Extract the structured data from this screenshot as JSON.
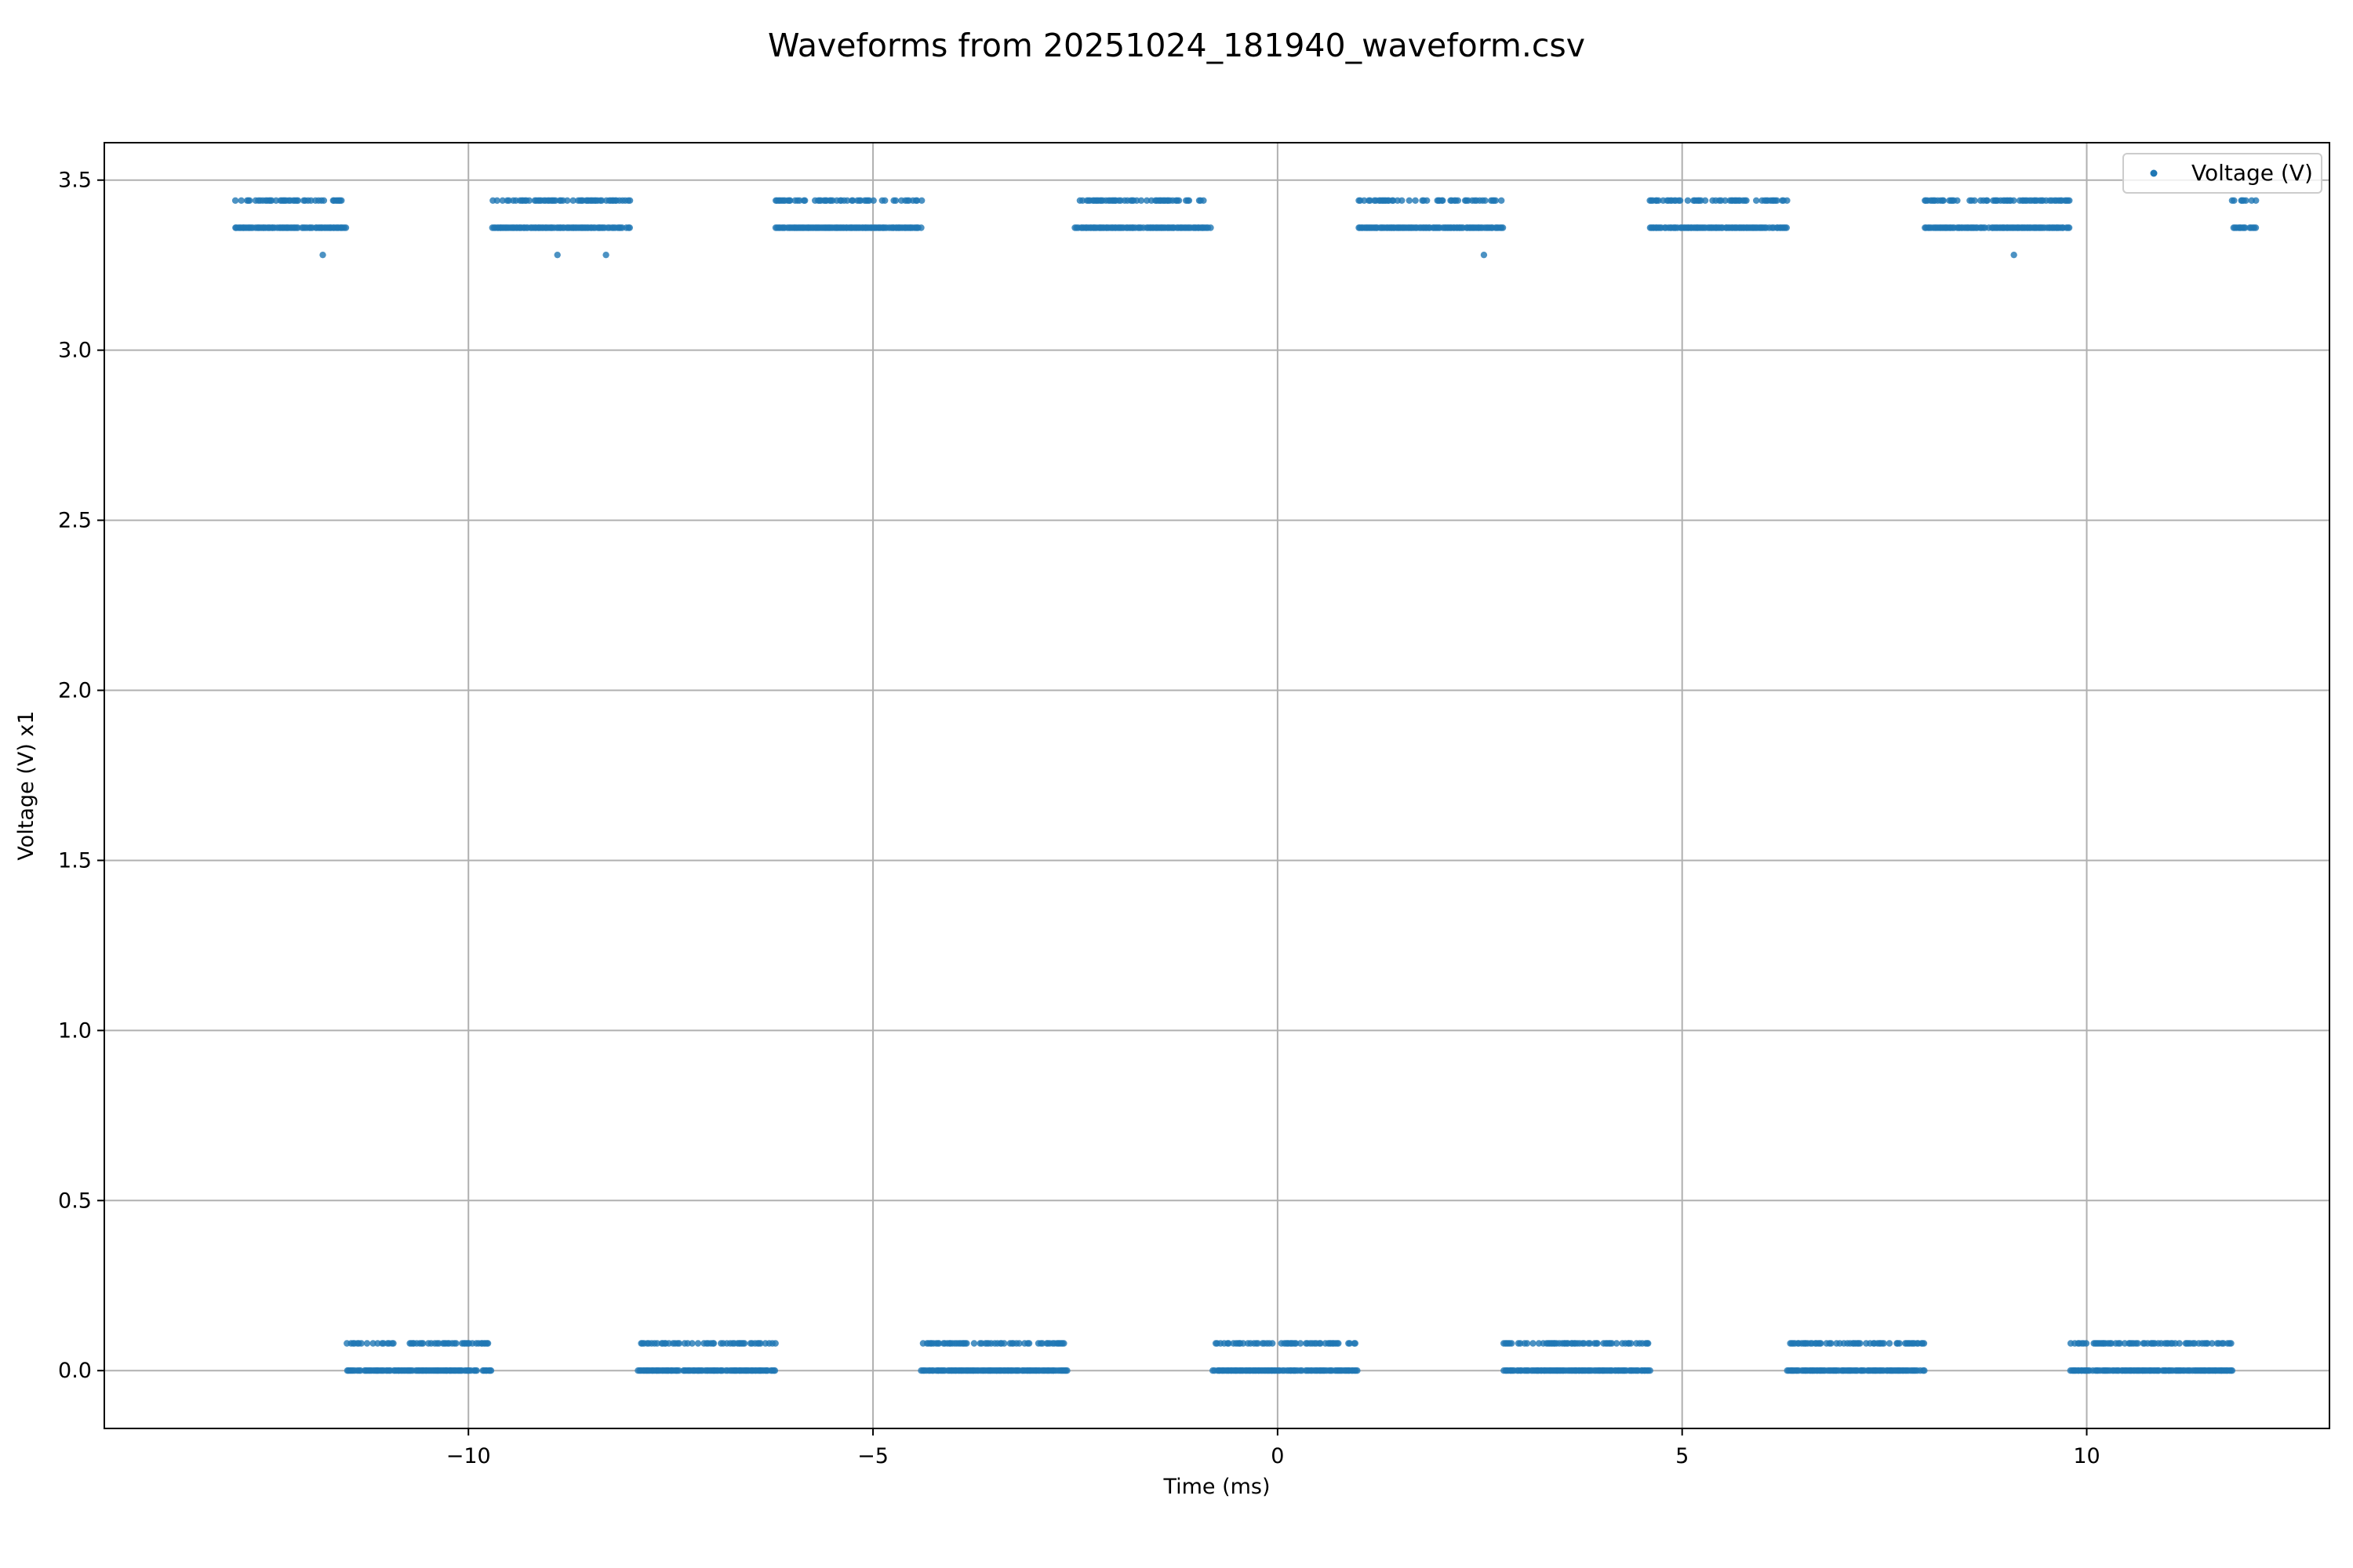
{
  "chart_data": {
    "type": "scatter",
    "title": "Waveforms from 20251024_181940_waveform.csv",
    "xlabel": "Time (ms)",
    "ylabel": "Voltage (V) x1",
    "xlim": [
      -14.5,
      13.0
    ],
    "ylim": [
      -0.17,
      3.61
    ],
    "x_ticks": [
      -10,
      -5,
      0,
      5,
      10
    ],
    "x_tick_labels": [
      "−10",
      "−5",
      "0",
      "5",
      "10"
    ],
    "y_ticks": [
      0.0,
      0.5,
      1.0,
      1.5,
      2.0,
      2.5,
      3.0,
      3.5
    ],
    "y_tick_labels": [
      "0.0",
      "0.5",
      "1.0",
      "1.5",
      "2.0",
      "2.5",
      "3.0",
      "3.5"
    ],
    "grid": true,
    "legend_position": "top-right",
    "color": "#1f77b4",
    "series": [
      {
        "name": "Voltage (V)",
        "high_levels": [
          3.44,
          3.36
        ],
        "low_levels": [
          0.08,
          0.0
        ],
        "segments": [
          {
            "level": "high",
            "x_start": -12.9,
            "x_end": -11.5
          },
          {
            "level": "low",
            "x_start": -11.5,
            "x_end": -9.7
          },
          {
            "level": "high",
            "x_start": -9.7,
            "x_end": -8.0
          },
          {
            "level": "low",
            "x_start": -7.9,
            "x_end": -6.2
          },
          {
            "level": "high",
            "x_start": -6.2,
            "x_end": -4.4
          },
          {
            "level": "low",
            "x_start": -4.4,
            "x_end": -2.6
          },
          {
            "level": "high",
            "x_start": -2.5,
            "x_end": -0.8
          },
          {
            "level": "low",
            "x_start": -0.8,
            "x_end": 1.0
          },
          {
            "level": "high",
            "x_start": 1.0,
            "x_end": 2.8
          },
          {
            "level": "low",
            "x_start": 2.8,
            "x_end": 4.6
          },
          {
            "level": "high",
            "x_start": 4.6,
            "x_end": 6.3
          },
          {
            "level": "low",
            "x_start": 6.3,
            "x_end": 8.0
          },
          {
            "level": "high",
            "x_start": 8.0,
            "x_end": 9.8
          },
          {
            "level": "low",
            "x_start": 9.8,
            "x_end": 11.8
          },
          {
            "level": "high",
            "x_start": 11.8,
            "x_end": 12.1
          }
        ],
        "outliers": [
          {
            "x": -11.8,
            "y": 3.28
          },
          {
            "x": -8.9,
            "y": 3.28
          },
          {
            "x": -8.3,
            "y": 3.28
          },
          {
            "x": 2.55,
            "y": 3.28
          },
          {
            "x": 9.1,
            "y": 3.28
          }
        ]
      }
    ]
  }
}
